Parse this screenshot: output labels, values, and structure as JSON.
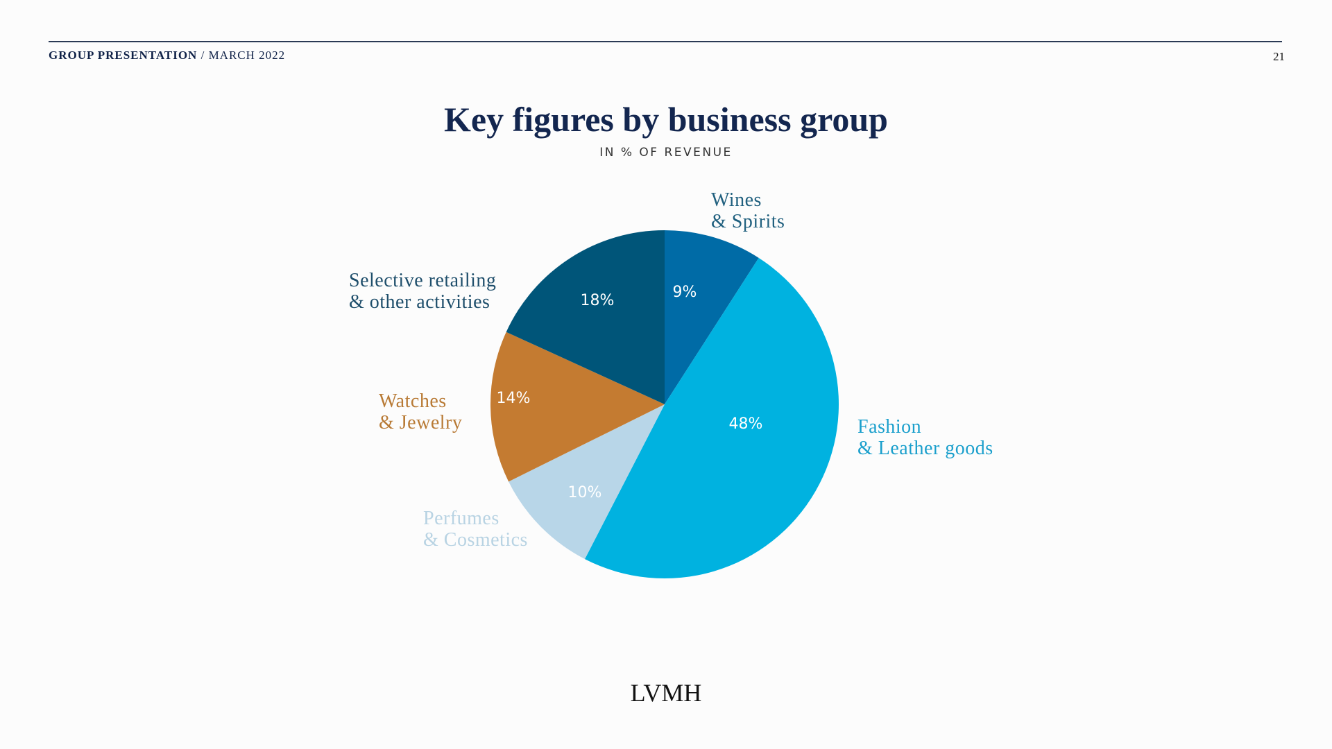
{
  "header": {
    "left_bold": "GROUP PRESENTATION",
    "separator": " / ",
    "left_light": "MARCH 2022",
    "page_number": "21"
  },
  "footer": {
    "logo": "LVMH"
  },
  "chart_data": {
    "type": "pie",
    "title": "Key figures by business group",
    "subtitle": "IN % OF REVENUE",
    "start": "top",
    "direction": "clockwise",
    "unit": "%",
    "slices": [
      {
        "name": "Wines & Spirits",
        "label_lines": [
          "Wines",
          "& Spirits"
        ],
        "value": 9,
        "value_label": "9%",
        "color": "#006ba6",
        "label_color": "#1f5f7e"
      },
      {
        "name": "Fashion & Leather goods",
        "label_lines": [
          "Fashion",
          "& Leather goods"
        ],
        "value": 48,
        "value_label": "48%",
        "color": "#00b2e0",
        "label_color": "#1a9fcc"
      },
      {
        "name": "Perfumes & Cosmetics",
        "label_lines": [
          "Perfumes",
          "& Cosmetics"
        ],
        "value": 10,
        "value_label": "10%",
        "color": "#b8d6e8",
        "label_color": "#b8d3e3"
      },
      {
        "name": "Watches & Jewelry",
        "label_lines": [
          "Watches",
          "& Jewelry"
        ],
        "value": 14,
        "value_label": "14%",
        "color": "#c47b31",
        "label_color": "#b87a35"
      },
      {
        "name": "Selective retailing & other activities",
        "label_lines": [
          "Selective retailing",
          "& other activities"
        ],
        "value": 18,
        "value_label": "18%",
        "color": "#005579",
        "label_color": "#1e4e6b"
      }
    ]
  }
}
